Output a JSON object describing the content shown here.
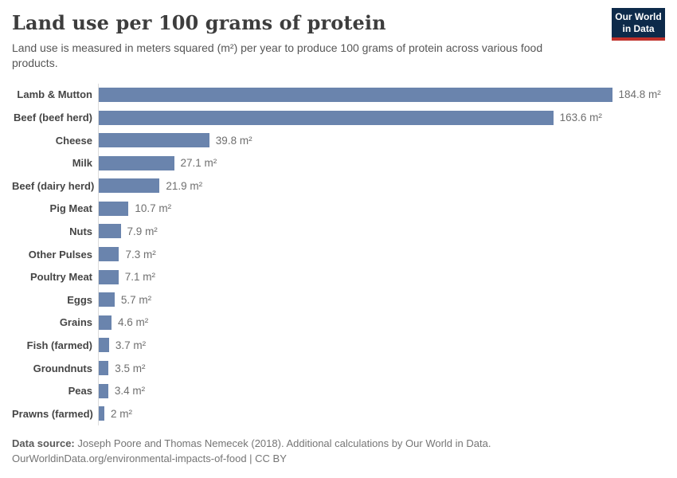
{
  "header": {
    "title": "Land use per 100 grams of protein",
    "subtitle": "Land use is measured in meters squared (m²) per year to produce 100 grams of protein across various food products.",
    "logo": {
      "line1": "Our World",
      "line2": "in Data"
    }
  },
  "chart_data": {
    "type": "bar",
    "orientation": "horizontal",
    "title": "Land use per 100 grams of protein",
    "unit": "m²",
    "xlim": [
      0,
      190
    ],
    "grid": false,
    "legend": false,
    "categories": [
      "Lamb & Mutton",
      "Beef (beef herd)",
      "Cheese",
      "Milk",
      "Beef (dairy herd)",
      "Pig Meat",
      "Nuts",
      "Other Pulses",
      "Poultry Meat",
      "Eggs",
      "Grains",
      "Fish (farmed)",
      "Groundnuts",
      "Peas",
      "Prawns (farmed)"
    ],
    "values": [
      184.8,
      163.6,
      39.8,
      27.1,
      21.9,
      10.7,
      7.9,
      7.3,
      7.1,
      5.7,
      4.6,
      3.7,
      3.5,
      3.4,
      2
    ],
    "value_labels": [
      "184.8 m²",
      "163.6 m²",
      "39.8 m²",
      "27.1 m²",
      "21.9 m²",
      "10.7 m²",
      "7.9 m²",
      "7.3 m²",
      "7.1 m²",
      "5.7 m²",
      "4.6 m²",
      "3.7 m²",
      "3.5 m²",
      "3.4 m²",
      "2 m²"
    ]
  },
  "footer": {
    "source_label": "Data source:",
    "source_text": "Joseph Poore and Thomas Nemecek (2018). Additional calculations by Our World in Data.",
    "url_line": "OurWorldinData.org/environmental-impacts-of-food | CC BY"
  },
  "colors": {
    "bar": "#6a84ad",
    "title": "#3d3d3d",
    "subtitle": "#565656",
    "category_label": "#454545",
    "value_label": "#6f6f6f",
    "axis_line": "#dcdcdc",
    "logo_background": "#0d2a4a",
    "logo_red": "#c0302a"
  }
}
